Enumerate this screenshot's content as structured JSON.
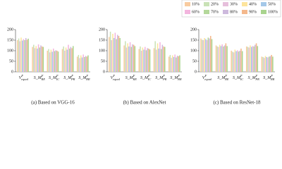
{
  "chart_data": [
    {
      "type": "bar",
      "subtitle": "(a) Based on VGG-16",
      "categories": [
        {
          "base": "V",
          "sup": "F",
          "sub": "equal"
        },
        {
          "base": "S_M",
          "sup": "F",
          "sub": "RE"
        },
        {
          "base": "S_M",
          "sup": "F",
          "sub": "IC"
        },
        {
          "base": "S_M",
          "sup": "F",
          "sub": "PR"
        },
        {
          "base": "S_M",
          "sup": "F",
          "sub": "RR"
        }
      ],
      "series": [
        {
          "name": "10%",
          "color": "#f8cba0",
          "values": [
            150,
            118,
            100,
            108,
            72
          ]
        },
        {
          "name": "20%",
          "color": "#c9e2b6",
          "values": [
            158,
            128,
            108,
            120,
            80
          ]
        },
        {
          "name": "30%",
          "color": "#e6bfdc",
          "values": [
            145,
            112,
            92,
            100,
            65
          ]
        },
        {
          "name": "40%",
          "color": "#fde49c",
          "values": [
            162,
            122,
            105,
            115,
            78
          ]
        },
        {
          "name": "50%",
          "color": "#a4c8e8",
          "values": [
            148,
            110,
            95,
            105,
            68
          ]
        },
        {
          "name": "60%",
          "color": "#f3b5de",
          "values": [
            155,
            130,
            110,
            128,
            82
          ]
        },
        {
          "name": "70%",
          "color": "#b4d89a",
          "values": [
            150,
            115,
            98,
            110,
            70
          ]
        },
        {
          "name": "80%",
          "color": "#cdb9dd",
          "values": [
            160,
            125,
            102,
            118,
            75
          ]
        },
        {
          "name": "90%",
          "color": "#f4b88c",
          "values": [
            152,
            120,
            100,
            112,
            72
          ]
        },
        {
          "name": "100%",
          "color": "#a9d48e",
          "values": [
            157,
            118,
            96,
            122,
            78
          ]
        }
      ],
      "ylim": [
        0,
        200
      ],
      "yticks": [
        0,
        50,
        100,
        150,
        200
      ]
    },
    {
      "type": "bar",
      "subtitle": "(b) Based on AlexNet",
      "categories": [
        {
          "base": "V",
          "sup": "F",
          "sub": "equal"
        },
        {
          "base": "S_M",
          "sup": "F",
          "sub": "RE"
        },
        {
          "base": "S_M",
          "sup": "F",
          "sub": "IC"
        },
        {
          "base": "S_M",
          "sup": "F",
          "sub": "PR"
        },
        {
          "base": "S_M",
          "sup": "F",
          "sub": "RR"
        }
      ],
      "series": [
        {
          "values": [
            165,
            125,
            108,
            112,
            72
          ]
        },
        {
          "values": [
            190,
            145,
            120,
            145,
            80
          ]
        },
        {
          "values": [
            150,
            115,
            100,
            105,
            66
          ]
        },
        {
          "values": [
            180,
            135,
            115,
            135,
            78
          ]
        },
        {
          "values": [
            160,
            120,
            105,
            110,
            70
          ]
        },
        {
          "values": [
            185,
            140,
            118,
            140,
            82
          ]
        },
        {
          "values": [
            155,
            118,
            102,
            108,
            68
          ]
        },
        {
          "values": [
            175,
            130,
            112,
            128,
            76
          ]
        },
        {
          "values": [
            170,
            128,
            110,
            120,
            74
          ]
        },
        {
          "values": [
            160,
            122,
            106,
            118,
            78
          ]
        }
      ],
      "ylim": [
        0,
        200
      ],
      "yticks": [
        0,
        50,
        100,
        150,
        200
      ]
    },
    {
      "type": "bar",
      "subtitle": "(c) Based on ResNet-18",
      "categories": [
        {
          "base": "V",
          "sup": "F",
          "sub": "equal"
        },
        {
          "base": "S_M",
          "sup": "F",
          "sub": "RE"
        },
        {
          "base": "S_M",
          "sup": "F",
          "sub": "IC"
        },
        {
          "base": "S_M",
          "sup": "F",
          "sub": "PR"
        },
        {
          "base": "S_M",
          "sup": "F",
          "sub": "RR"
        }
      ],
      "series": [
        {
          "values": [
            158,
            125,
            100,
            120,
            72
          ]
        },
        {
          "values": [
            152,
            120,
            95,
            118,
            70
          ]
        },
        {
          "values": [
            150,
            118,
            92,
            115,
            66
          ]
        },
        {
          "values": [
            160,
            128,
            105,
            125,
            75
          ]
        },
        {
          "values": [
            155,
            122,
            98,
            118,
            70
          ]
        },
        {
          "values": [
            150,
            130,
            102,
            122,
            68
          ]
        },
        {
          "values": [
            162,
            120,
            96,
            120,
            72
          ]
        },
        {
          "values": [
            158,
            125,
            100,
            128,
            74
          ]
        },
        {
          "values": [
            170,
            135,
            110,
            135,
            80
          ]
        },
        {
          "values": [
            155,
            122,
            98,
            122,
            72
          ]
        }
      ],
      "ylim": [
        0,
        200
      ],
      "yticks": [
        0,
        50,
        100,
        150,
        200
      ]
    }
  ]
}
